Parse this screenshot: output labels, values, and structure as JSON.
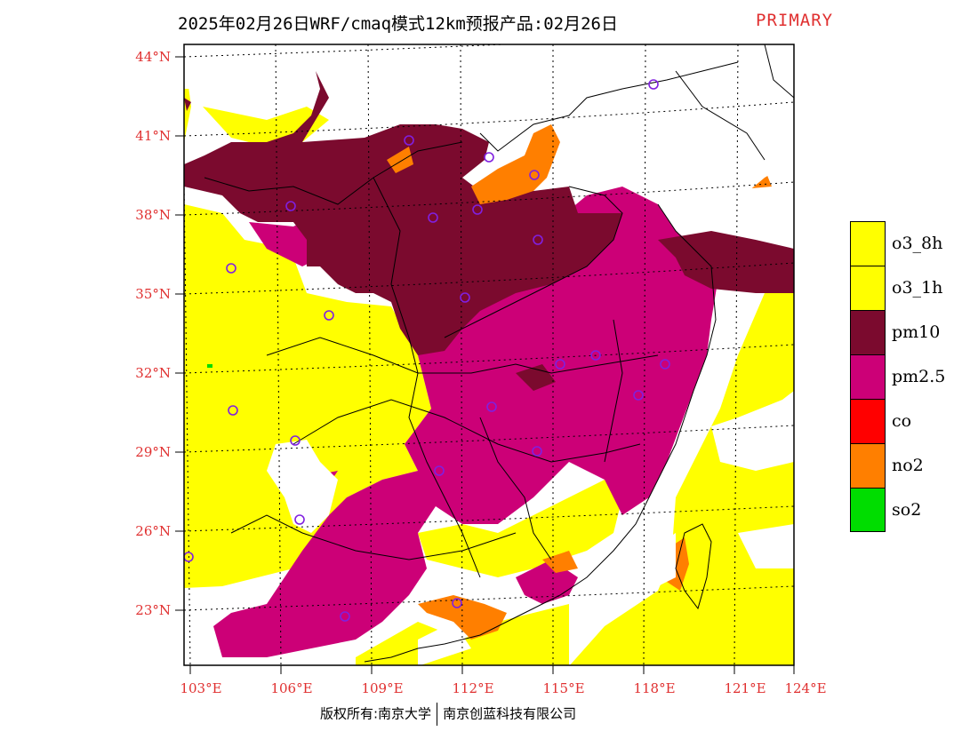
{
  "title": "2025年02月26日WRF/cmaq模式12km预报产品:02月26日",
  "title_tag": "PRIMARY",
  "lat_labels": [
    "44°N",
    "41°N",
    "38°N",
    "35°N",
    "32°N",
    "29°N",
    "26°N",
    "23°N"
  ],
  "lon_labels": [
    "103°E",
    "106°E",
    "109°E",
    "112°E",
    "115°E",
    "118°E",
    "121°E",
    "124°E"
  ],
  "copyright_left": "版权所有:南京大学",
  "copyright_right": "南京创蓝科技有限公司",
  "legend": [
    {
      "label": "o3_8h",
      "color": "#ffff00"
    },
    {
      "label": "o3_1h",
      "color": "#ffff00"
    },
    {
      "label": "pm10",
      "color": "#7b0a2e"
    },
    {
      "label": "pm2.5",
      "color": "#cc0077"
    },
    {
      "label": "co",
      "color": "#ff0000"
    },
    {
      "label": "no2",
      "color": "#ff7f00"
    },
    {
      "label": "so2",
      "color": "#00dd00"
    }
  ],
  "colors": {
    "label_red": "#e03030",
    "station_marker": "#8020e0",
    "no_data": "#ffffff"
  }
}
